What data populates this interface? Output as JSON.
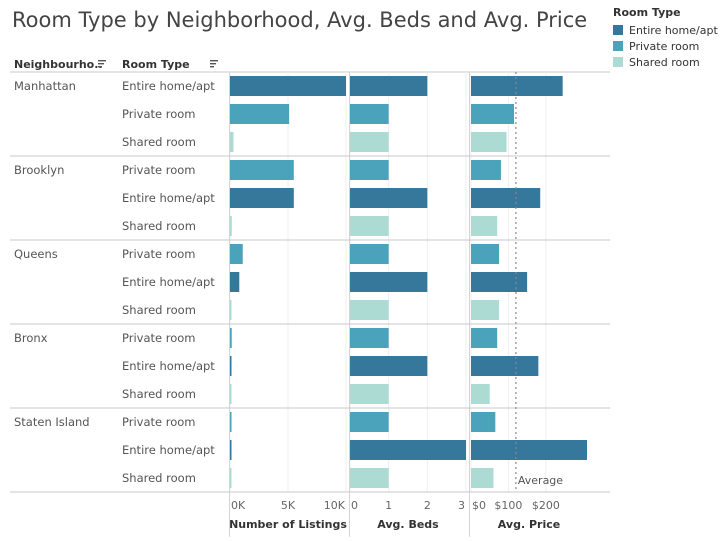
{
  "title": "Room Type by Neighborhood, Avg. Beds and Avg. Price",
  "legend": {
    "title": "Room Type",
    "items": [
      {
        "label": "Entire home/apt",
        "color": "#35789b"
      },
      {
        "label": "Private room",
        "color": "#4ba3bb"
      },
      {
        "label": "Shared room",
        "color": "#acdbd3"
      }
    ]
  },
  "header": {
    "neighbourhood": "Neighbourho..",
    "room_type": "Room Type",
    "sort_icon": "sort-icon"
  },
  "average_label": "Average",
  "chart_data": {
    "type": "bar",
    "title": "Room Type by Neighborhood, Avg. Beds and Avg. Price",
    "orientation": "horizontal",
    "colors": {
      "Entire home/apt": "#35789b",
      "Private room": "#4ba3bb",
      "Shared room": "#acdbd3"
    },
    "groups": [
      {
        "neighbourhood": "Manhattan",
        "rows": [
          {
            "room_type": "Entire home/apt",
            "listings": 10000,
            "beds": 2.0,
            "price": 245
          },
          {
            "room_type": "Private room",
            "listings": 5100,
            "beds": 1.0,
            "price": 115
          },
          {
            "room_type": "Shared room",
            "listings": 300,
            "beds": 1.0,
            "price": 95
          }
        ]
      },
      {
        "neighbourhood": "Brooklyn",
        "rows": [
          {
            "room_type": "Private room",
            "listings": 5500,
            "beds": 1.0,
            "price": 80
          },
          {
            "room_type": "Entire home/apt",
            "listings": 5500,
            "beds": 2.0,
            "price": 185
          },
          {
            "room_type": "Shared room",
            "listings": 150,
            "beds": 1.0,
            "price": 70
          }
        ]
      },
      {
        "neighbourhood": "Queens",
        "rows": [
          {
            "room_type": "Private room",
            "listings": 1100,
            "beds": 1.0,
            "price": 75
          },
          {
            "room_type": "Entire home/apt",
            "listings": 800,
            "beds": 2.0,
            "price": 150
          },
          {
            "room_type": "Shared room",
            "listings": 50,
            "beds": 1.0,
            "price": 75
          }
        ]
      },
      {
        "neighbourhood": "Bronx",
        "rows": [
          {
            "room_type": "Private room",
            "listings": 150,
            "beds": 1.0,
            "price": 70
          },
          {
            "room_type": "Entire home/apt",
            "listings": 20,
            "beds": 2.0,
            "price": 180
          },
          {
            "room_type": "Shared room",
            "listings": 10,
            "beds": 1.0,
            "price": 50
          }
        ]
      },
      {
        "neighbourhood": "Staten Island",
        "rows": [
          {
            "room_type": "Private room",
            "listings": 20,
            "beds": 1.0,
            "price": 65
          },
          {
            "room_type": "Entire home/apt",
            "listings": 20,
            "beds": 3.0,
            "price": 310
          },
          {
            "room_type": "Shared room",
            "listings": 5,
            "beds": 1.0,
            "price": 60
          }
        ]
      }
    ],
    "axes": [
      {
        "label": "Number of Listings",
        "key": "listings",
        "domain": [
          0,
          10000
        ],
        "ticks": [
          0,
          5000,
          10000
        ],
        "tick_labels": [
          "0K",
          "5K",
          "10K"
        ]
      },
      {
        "label": "Avg. Beds",
        "key": "beds",
        "domain": [
          0,
          3
        ],
        "ticks": [
          0,
          1,
          2,
          3
        ],
        "tick_labels": [
          "0",
          "1",
          "2",
          "3"
        ]
      },
      {
        "label": "Avg. Price",
        "key": "price",
        "domain": [
          0,
          310
        ],
        "ticks": [
          0,
          100,
          200
        ],
        "tick_labels": [
          "$0",
          "$100",
          "$200"
        ],
        "reference_line": {
          "label": "Average",
          "value": 120
        }
      }
    ]
  }
}
